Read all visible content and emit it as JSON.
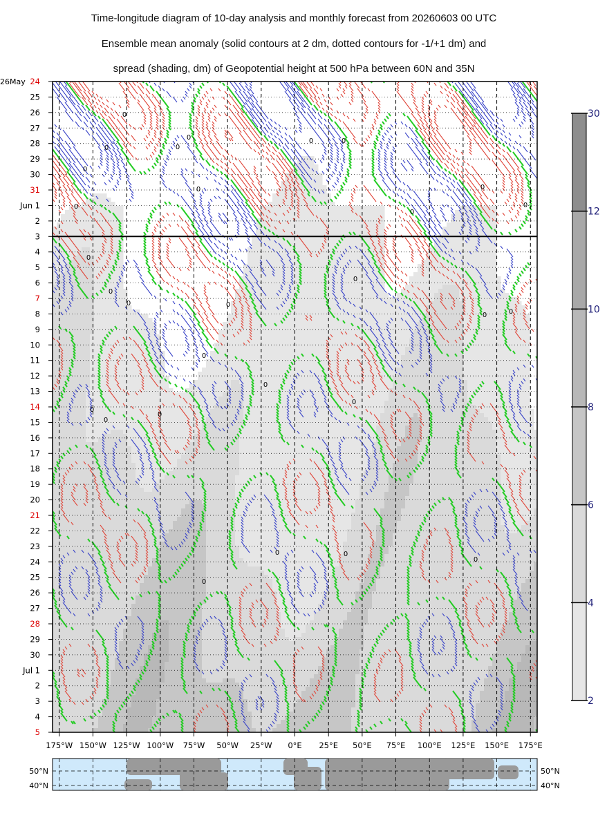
{
  "title_lines": [
    "Time-longitude diagram of 10-day analysis and monthly forecast from 20260603 00 UTC",
    "Ensemble mean anomaly (solid contours at 2 dm, dotted contours for -1/+1 dm) and",
    "spread (shading, dm) of Geopotential height at 500 hPa between 60N and 35N"
  ],
  "chart_data": {
    "type": "heatmap",
    "x_axis": {
      "range": [
        -180,
        180
      ],
      "tick_labels": [
        "175°W",
        "150°W",
        "125°W",
        "100°W",
        "75°W",
        "50°W",
        "25°W",
        "0°E",
        "25°E",
        "50°E",
        "75°E",
        "100°E",
        "125°E",
        "150°E",
        "175°E"
      ]
    },
    "y_axis": {
      "reversed": true,
      "start_label": "26May",
      "day_labels": [
        "24",
        "25",
        "26",
        "27",
        "28",
        "29",
        "30",
        "31",
        "Jun 1",
        "2",
        "3",
        "4",
        "5",
        "6",
        "7",
        "8",
        "9",
        "10",
        "11",
        "12",
        "13",
        "14",
        "15",
        "16",
        "17",
        "18",
        "19",
        "20",
        "21",
        "22",
        "23",
        "24",
        "25",
        "26",
        "27",
        "28",
        "29",
        "30",
        "Jul 1",
        "2",
        "3",
        "4",
        "5"
      ],
      "red_labels": [
        "24",
        "31",
        "7",
        "14",
        "21",
        "28",
        "5"
      ],
      "analysis_forecast_boundary_label": "3"
    },
    "colorbar": {
      "unit": "dm",
      "labels": [
        "2",
        "4",
        "6",
        "8",
        "10",
        "12",
        "30"
      ],
      "fills": [
        "#e6e6e6",
        "#dadada",
        "#c6c6c6",
        "#b8b8b8",
        "#a8a8a8",
        "#8e8e8e"
      ]
    },
    "contour_labels": [
      "0"
    ],
    "colors": {
      "positive_contour": "#e0463a",
      "negative_contour": "#3a44c8",
      "zero_contour": "#22cc22",
      "grid": "#000000",
      "map_ocean": "#cfe9fb",
      "map_land": "#9a9a9a",
      "day_red": "#dd0000",
      "colorbar_text": "#22227a"
    },
    "grid": true,
    "map_strip": {
      "lat_labels_left": [
        "50°N",
        "40°N"
      ],
      "lat_labels_right": [
        "50°N",
        "40°N"
      ]
    }
  }
}
